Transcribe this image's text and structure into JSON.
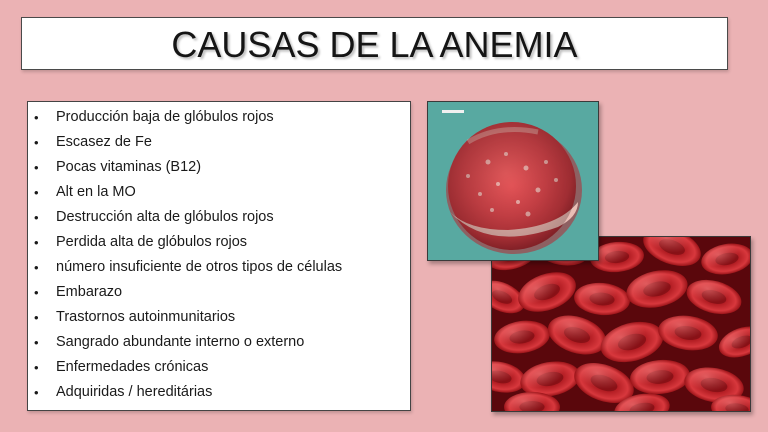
{
  "slide": {
    "title": "CAUSAS DE LA ANEMIA",
    "background_color": "#ebb2b4"
  },
  "causes": {
    "bullet_glyph": "•",
    "items": [
      "Producción baja de glóbulos rojos",
      "Escasez de Fe",
      "Pocas vitaminas (B12)",
      "Alt en la MO",
      "Destrucción alta de glóbulos rojos",
      "Perdida alta de glóbulos rojos",
      "número insuficiente de otros tipos de células",
      "Embarazo",
      "Trastornos autoinmunitarios",
      "Sangrado abundante interno o externo",
      "Enfermedades crónicas",
      "Adquiridas / hereditárias"
    ]
  },
  "images": {
    "marrow_photo": {
      "icon": "bone-marrow-photo-icon",
      "colors": [
        "#5aaaa2",
        "#d84a4e",
        "#f3c9c0"
      ]
    },
    "rbc_photo": {
      "icon": "red-blood-cells-photo-icon",
      "colors": [
        "#5c0a0e",
        "#c4262c",
        "#e64a4e"
      ]
    }
  }
}
